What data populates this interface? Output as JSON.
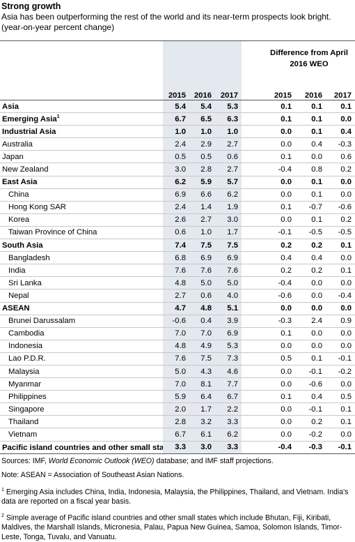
{
  "header": {
    "title": "Strong growth",
    "subtitle": "Asia has been outperforming the rest of the world and its near-term prospects look bright.",
    "unit": "(year-on-year percent change)"
  },
  "table": {
    "group_header": "Difference from April 2016 WEO",
    "columns": [
      "2015",
      "2016",
      "2017",
      "2015",
      "2016",
      "2017"
    ],
    "rows": [
      {
        "label": "Asia",
        "bold": true,
        "values": [
          "5.4",
          "5.4",
          "5.3",
          "0.1",
          "0.1",
          "0.1"
        ]
      },
      {
        "label": "Emerging Asia",
        "note": "1",
        "bold": true,
        "values": [
          "6.7",
          "6.5",
          "6.3",
          "0.1",
          "0.1",
          "0.0"
        ]
      },
      {
        "label": "Industrial Asia",
        "bold": true,
        "values": [
          "1.0",
          "1.0",
          "1.0",
          "0.0",
          "0.1",
          "0.4"
        ]
      },
      {
        "label": "Australia",
        "values": [
          "2.4",
          "2.9",
          "2.7",
          "0.0",
          "0.4",
          "-0.3"
        ]
      },
      {
        "label": "Japan",
        "values": [
          "0.5",
          "0.5",
          "0.6",
          "0.1",
          "0.0",
          "0.6"
        ]
      },
      {
        "label": "New Zealand",
        "values": [
          "3.0",
          "2.8",
          "2.7",
          "-0.4",
          "0.8",
          "0.2"
        ]
      },
      {
        "label": "East Asia",
        "bold": true,
        "values": [
          "6.2",
          "5.9",
          "5.7",
          "0.0",
          "0.1",
          "0.0"
        ]
      },
      {
        "label": "China",
        "indent": true,
        "values": [
          "6.9",
          "6.6",
          "6.2",
          "0.0",
          "0.1",
          "0.0"
        ]
      },
      {
        "label": "Hong Kong SAR",
        "indent": true,
        "values": [
          "2.4",
          "1.4",
          "1.9",
          "0.1",
          "-0.7",
          "-0.6"
        ]
      },
      {
        "label": "Korea",
        "indent": true,
        "values": [
          "2.6",
          "2.7",
          "3.0",
          "0.0",
          "0.1",
          "0.2"
        ]
      },
      {
        "label": "Taiwan Province of China",
        "indent": true,
        "values": [
          "0.6",
          "1.0",
          "1.7",
          "-0.1",
          "-0.5",
          "-0.5"
        ]
      },
      {
        "label": "South Asia",
        "bold": true,
        "values": [
          "7.4",
          "7.5",
          "7.5",
          "0.2",
          "0.2",
          "0.1"
        ]
      },
      {
        "label": "Bangladesh",
        "indent": true,
        "values": [
          "6.8",
          "6.9",
          "6.9",
          "0.4",
          "0.4",
          "0.0"
        ]
      },
      {
        "label": "India",
        "indent": true,
        "values": [
          "7.6",
          "7.6",
          "7.6",
          "0.2",
          "0.2",
          "0.1"
        ]
      },
      {
        "label": "Sri Lanka",
        "indent": true,
        "values": [
          "4.8",
          "5.0",
          "5.0",
          "-0.4",
          "0.0",
          "0.0"
        ]
      },
      {
        "label": "Nepal",
        "indent": true,
        "values": [
          "2.7",
          "0.6",
          "4.0",
          "-0.6",
          "0.0",
          "-0.4"
        ]
      },
      {
        "label": "ASEAN",
        "bold": true,
        "values": [
          "4.7",
          "4.8",
          "5.1",
          "0.0",
          "0.0",
          "0.0"
        ]
      },
      {
        "label": "Brunei Darussalam",
        "indent": true,
        "values": [
          "-0.6",
          "0.4",
          "3.9",
          "-0.3",
          "2.4",
          "0.9"
        ]
      },
      {
        "label": "Cambodia",
        "indent": true,
        "values": [
          "7.0",
          "7.0",
          "6.9",
          "0.1",
          "0.0",
          "0.0"
        ]
      },
      {
        "label": "Indonesia",
        "indent": true,
        "values": [
          "4.8",
          "4.9",
          "5.3",
          "0.0",
          "0.0",
          "0.0"
        ]
      },
      {
        "label": "Lao P.D.R.",
        "indent": true,
        "values": [
          "7.6",
          "7.5",
          "7.3",
          "0.5",
          "0.1",
          "-0.1"
        ]
      },
      {
        "label": "Malaysia",
        "indent": true,
        "values": [
          "5.0",
          "4.3",
          "4.6",
          "0.0",
          "-0.1",
          "-0.2"
        ]
      },
      {
        "label": "Myanmar",
        "indent": true,
        "values": [
          "7.0",
          "8.1",
          "7.7",
          "0.0",
          "-0.6",
          "0.0"
        ]
      },
      {
        "label": "Philippines",
        "indent": true,
        "values": [
          "5.9",
          "6.4",
          "6.7",
          "0.1",
          "0.4",
          "0.5"
        ]
      },
      {
        "label": "Singapore",
        "indent": true,
        "values": [
          "2.0",
          "1.7",
          "2.2",
          "0.0",
          "-0.1",
          "0.1"
        ]
      },
      {
        "label": "Thailand",
        "indent": true,
        "values": [
          "2.8",
          "3.2",
          "3.3",
          "0.0",
          "0.2",
          "0.1"
        ]
      },
      {
        "label": "Vietnam",
        "indent": true,
        "values": [
          "6.7",
          "6.1",
          "6.2",
          "0.0",
          "-0.2",
          "0.0"
        ]
      },
      {
        "label": "Pacific island countries and other small states",
        "note": "2",
        "bold": true,
        "values": [
          "3.3",
          "3.0",
          "3.3",
          "-0.4",
          "-0.3",
          "-0.1"
        ]
      }
    ]
  },
  "sources": [
    "Sources: IMF, ",
    "World Economic Outlook (WEO)",
    " database; and IMF staff projections."
  ],
  "note": "Note: ASEAN = Association of Southeast Asian Nations.",
  "footnotes": [
    {
      "marker": "1",
      "text": "Emerging Asia includes China, India, Indonesia, Malaysia, the Philippines, Thailand, and Vietnam. India's data are reported on a fiscal year basis."
    },
    {
      "marker": "2",
      "text": "Simple average of Pacific island countries and other small states which include Bhutan, Fiji, Kiribati, Maldives, the Marshall Islands, Micronesia, Palau, Papua New Guinea, Samoa, Solomon Islands, Timor-Leste, Tonga, Tuvalu, and Vanuatu."
    }
  ]
}
